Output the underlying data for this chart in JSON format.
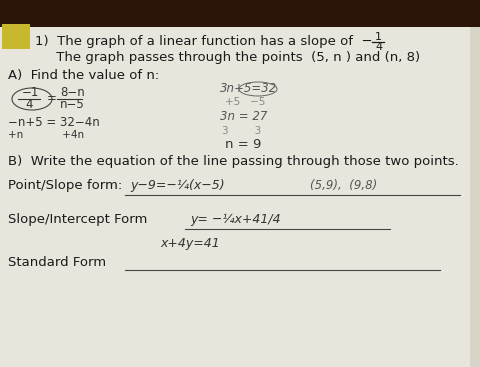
{
  "bg_color_top": "#3a2010",
  "bg_color_paper": "#ccc9be",
  "paper_color": "#e8e5dc",
  "tab_color": "#c8b830",
  "fs_main": 9.5,
  "fs_work": 8.5,
  "fs_small": 7.5,
  "text_dark": "#1a1a1a",
  "text_mid": "#333333",
  "text_gray": "#555555",
  "line1a": "1)  The graph of a linear function has a slope of  −",
  "line2": "     The graph passes through the points  (5, n ) and (n, 8)",
  "secA": "A)  Find the value of n:",
  "secB": "B)  Write the equation of the line passing through those two points.",
  "ps_label": "Point/Slope form:  ",
  "ps_answer": "y−9=−¼(x−5)",
  "ps_points": "(5,9),  (9,8)",
  "si_label": "Slope/Intercept Form",
  "si_answer": "y= −¼x+41/4",
  "sf_label": "Standard Form",
  "sf_answer": "x+4y=41"
}
